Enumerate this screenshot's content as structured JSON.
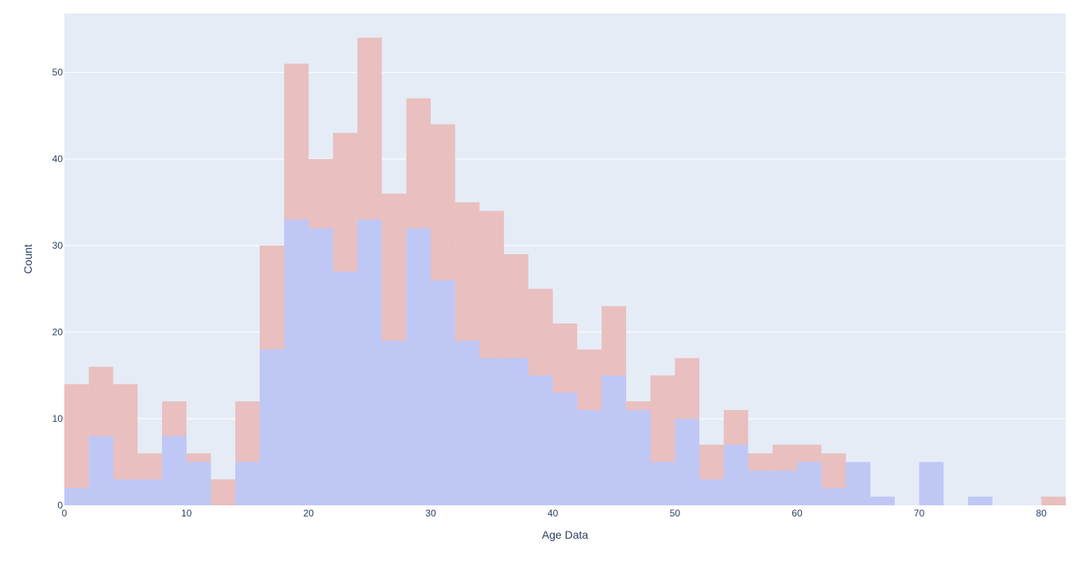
{
  "chart_data": {
    "type": "histogram",
    "barmode": "overlay",
    "bin_size": 2,
    "bin_start": 0,
    "xlabel": "Age Data",
    "ylabel": "Count",
    "xlim": [
      0,
      82
    ],
    "ylim": [
      0,
      56.8
    ],
    "x_ticks": [
      0,
      10,
      20,
      30,
      40,
      50,
      60,
      70,
      80
    ],
    "y_ticks": [
      0,
      10,
      20,
      30,
      40,
      50
    ],
    "grid": true,
    "legend": "none",
    "plot_background": "#e5ecf6",
    "series": [
      {
        "color": "#e9bfbf",
        "values": [
          14,
          16,
          14,
          6,
          12,
          6,
          3,
          12,
          30,
          51,
          40,
          43,
          54,
          36,
          47,
          44,
          35,
          34,
          29,
          25,
          21,
          18,
          23,
          12,
          15,
          17,
          7,
          11,
          6,
          7,
          7,
          6,
          0,
          0,
          0,
          0,
          0,
          0,
          0,
          0,
          1
        ]
      },
      {
        "color": "#bfc7f5",
        "values": [
          2,
          8,
          3,
          3,
          8,
          5,
          0,
          5,
          18,
          33,
          32,
          27,
          33,
          19,
          32,
          26,
          19,
          17,
          17,
          15,
          13,
          11,
          15,
          11,
          5,
          10,
          3,
          7,
          4,
          4,
          5,
          2,
          5,
          1,
          0,
          5,
          0,
          1,
          0,
          0,
          0
        ]
      }
    ]
  }
}
